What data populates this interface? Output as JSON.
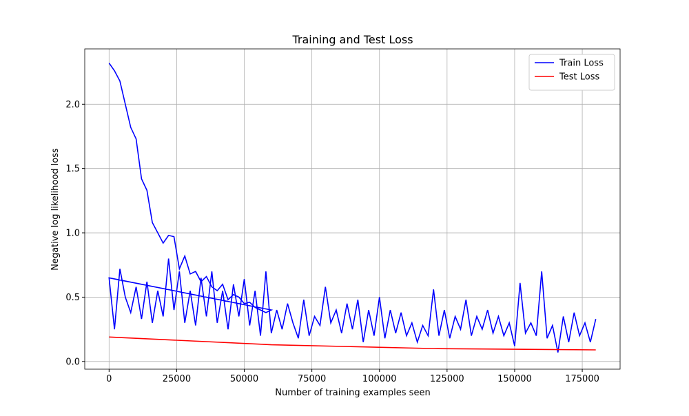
{
  "chart_data": {
    "type": "line",
    "title": "Training and Test Loss",
    "xlabel": "Number of training examples seen",
    "ylabel": "Negative log likelihood loss",
    "xlim": [
      -9000,
      189000
    ],
    "ylim": [
      -0.06,
      2.43
    ],
    "xticks": [
      0,
      25000,
      50000,
      75000,
      100000,
      125000,
      150000,
      175000
    ],
    "yticks": [
      {
        "value": 0,
        "label": "0.0"
      },
      0.5,
      {
        "value": 1,
        "label": "1.0"
      },
      1.5,
      {
        "value": 2,
        "label": "2.0"
      }
    ],
    "grid": true,
    "legend": "upper right",
    "series": [
      {
        "name": "Train Loss",
        "color": "#0000ff",
        "x": [
          0,
          2000,
          4000,
          6000,
          8000,
          10000,
          12000,
          14000,
          16000,
          18000,
          20000,
          22000,
          24000,
          26000,
          28000,
          30000,
          32000,
          34000,
          36000,
          38000,
          40000,
          42000,
          44000,
          46000,
          48000,
          50000,
          52000,
          54000,
          56000,
          58000,
          60000,
          0,
          2000,
          4000,
          6000,
          8000,
          10000,
          12000,
          14000,
          16000,
          18000,
          20000,
          22000,
          24000,
          26000,
          28000,
          30000,
          32000,
          34000,
          36000,
          38000,
          40000,
          42000,
          44000,
          46000,
          48000,
          50000,
          52000,
          54000,
          56000,
          58000,
          60000,
          62000,
          64000,
          66000,
          68000,
          70000,
          72000,
          74000,
          76000,
          78000,
          80000,
          82000,
          84000,
          86000,
          88000,
          90000,
          92000,
          94000,
          96000,
          98000,
          100000,
          102000,
          104000,
          106000,
          108000,
          110000,
          112000,
          114000,
          116000,
          118000,
          120000,
          122000,
          124000,
          126000,
          128000,
          130000,
          132000,
          134000,
          136000,
          138000,
          140000,
          142000,
          144000,
          146000,
          148000,
          150000,
          152000,
          154000,
          156000,
          158000,
          160000,
          162000,
          164000,
          166000,
          168000,
          170000,
          172000,
          174000,
          176000,
          178000,
          180000
        ],
        "values": [
          2.32,
          2.26,
          2.18,
          2.0,
          1.82,
          1.73,
          1.42,
          1.33,
          1.08,
          1.0,
          0.92,
          0.98,
          0.97,
          0.72,
          0.82,
          0.68,
          0.7,
          0.62,
          0.66,
          0.58,
          0.55,
          0.6,
          0.48,
          0.52,
          0.5,
          0.45,
          0.46,
          0.42,
          0.4,
          0.38,
          0.4,
          0.65,
          0.25,
          0.72,
          0.5,
          0.38,
          0.58,
          0.33,
          0.62,
          0.3,
          0.55,
          0.35,
          0.8,
          0.4,
          0.7,
          0.3,
          0.55,
          0.28,
          0.65,
          0.35,
          0.7,
          0.3,
          0.55,
          0.25,
          0.6,
          0.35,
          0.64,
          0.28,
          0.55,
          0.2,
          0.7,
          0.22,
          0.4,
          0.25,
          0.45,
          0.3,
          0.18,
          0.48,
          0.2,
          0.35,
          0.28,
          0.58,
          0.3,
          0.4,
          0.22,
          0.45,
          0.25,
          0.48,
          0.15,
          0.4,
          0.2,
          0.5,
          0.18,
          0.4,
          0.22,
          0.38,
          0.2,
          0.3,
          0.15,
          0.28,
          0.2,
          0.56,
          0.2,
          0.4,
          0.18,
          0.35,
          0.25,
          0.48,
          0.2,
          0.35,
          0.25,
          0.4,
          0.22,
          0.35,
          0.2,
          0.3,
          0.12,
          0.61,
          0.22,
          0.3,
          0.2,
          0.7,
          0.18,
          0.28,
          0.07,
          0.35,
          0.15,
          0.38,
          0.2,
          0.3,
          0.15,
          0.33
        ]
      },
      {
        "name": "Test Loss",
        "color": "#ff0000",
        "x": [
          0,
          60000,
          120000,
          180000
        ],
        "values": [
          0.19,
          0.13,
          0.1,
          0.09
        ]
      }
    ]
  }
}
